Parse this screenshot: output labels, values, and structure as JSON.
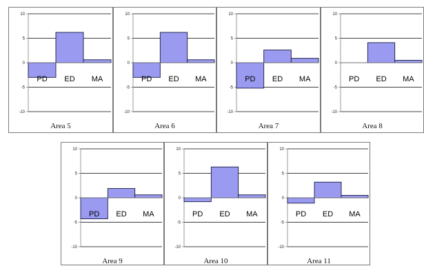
{
  "chart_data": [
    {
      "type": "bar",
      "title": "Area 5",
      "categories": [
        "PD",
        "ED",
        "MA"
      ],
      "values": [
        -3.0,
        6.2,
        0.6
      ],
      "ylim": [
        -10,
        10
      ],
      "yticks": [
        "10",
        "5",
        "0",
        "-5",
        "-10"
      ],
      "grid": true
    },
    {
      "type": "bar",
      "title": "Area 6",
      "categories": [
        "PD",
        "ED",
        "MA"
      ],
      "values": [
        -3.0,
        6.2,
        0.6
      ],
      "ylim": [
        -10,
        10
      ],
      "yticks": [
        "10",
        "5",
        "0",
        "-5",
        "-10"
      ],
      "grid": true
    },
    {
      "type": "bar",
      "title": "Area 7",
      "categories": [
        "PD",
        "ED",
        "MA"
      ],
      "values": [
        -5.2,
        2.6,
        0.9
      ],
      "ylim": [
        -10,
        10
      ],
      "yticks": [
        "10",
        "5",
        "0",
        "-5",
        "-10"
      ],
      "grid": true
    },
    {
      "type": "bar",
      "title": "Area 8",
      "categories": [
        "PD",
        "ED",
        "MA"
      ],
      "values": [
        0.0,
        4.1,
        0.5
      ],
      "ylim": [
        -10,
        10
      ],
      "yticks": [
        "10",
        "5",
        "0",
        "-5",
        "-10"
      ],
      "grid": true
    },
    {
      "type": "bar",
      "title": "Area 9",
      "categories": [
        "PD",
        "ED",
        "MA"
      ],
      "values": [
        -4.3,
        1.9,
        0.6
      ],
      "ylim": [
        -10,
        10
      ],
      "yticks": [
        "10",
        "5",
        "0",
        "-5",
        "-10"
      ],
      "grid": true
    },
    {
      "type": "bar",
      "title": "Area 10",
      "categories": [
        "PD",
        "ED",
        "MA"
      ],
      "values": [
        -0.8,
        6.3,
        0.6
      ],
      "ylim": [
        -10,
        10
      ],
      "yticks": [
        "10",
        "5",
        "0",
        "-5",
        "-10"
      ],
      "grid": true
    },
    {
      "type": "bar",
      "title": "Area 11",
      "categories": [
        "PD",
        "ED",
        "MA"
      ],
      "values": [
        -1.1,
        3.2,
        0.5
      ],
      "ylim": [
        -10,
        10
      ],
      "yticks": [
        "10",
        "5",
        "0",
        "-5",
        "-10"
      ],
      "grid": true
    }
  ],
  "colors": {
    "bar_fill": "#9a9af0",
    "bar_stroke": "#1a1a40",
    "grid": "#000000",
    "axis": "#7f7f7f"
  }
}
